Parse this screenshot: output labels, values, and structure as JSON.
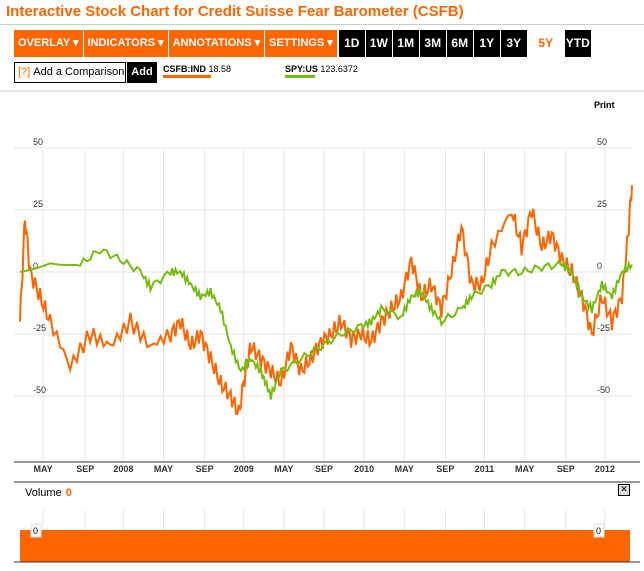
{
  "title": "Interactive Stock Chart for Credit Suisse Fear Barometer (CSFB)",
  "menus": [
    "OVERLAY ▾",
    "INDICATORS ▾",
    "ANNOTATIONS ▾",
    "SETTINGS ▾"
  ],
  "ranges": [
    "1D",
    "1W",
    "1M",
    "3M",
    "6M",
    "1Y",
    "3Y",
    "5Y",
    "YTD"
  ],
  "active_range": "5Y",
  "comparison": {
    "help": "[?]",
    "placeholder": "Add a Comparison",
    "add": "Add"
  },
  "legend": [
    {
      "symbol": "CSFB:IND",
      "value": "18.58",
      "color": "#ff6600"
    },
    {
      "symbol": "SPY:US",
      "value": "123.6372",
      "color": "#77bb11"
    }
  ],
  "print": "Print",
  "volume": {
    "label": "Volume",
    "value": "0",
    "axis_left": "0",
    "axis_right": "0",
    "close": "✕"
  },
  "chart_data": {
    "type": "line",
    "x_unit": "months since Mar 2007",
    "xlim": [
      0,
      61
    ],
    "ylim": [
      -70,
      70
    ],
    "yticks": [
      50,
      25,
      0,
      -25,
      -50
    ],
    "yticklabels": [
      "50",
      "25",
      "0",
      "-25",
      "-50"
    ],
    "xticks": [
      2.3,
      6.5,
      10.3,
      14.3,
      18.4,
      22.3,
      26.3,
      30.3,
      34.3,
      38.3,
      42.4,
      46.3,
      50.3,
      54.4,
      58.3
    ],
    "xticklabels": [
      "MAY",
      "SEP",
      "2008",
      "MAY",
      "SEP",
      "2009",
      "MAY",
      "SEP",
      "2010",
      "MAY",
      "SEP",
      "2011",
      "MAY",
      "SEP",
      "2012"
    ],
    "series": [
      {
        "name": "CSFB:IND",
        "color": "#ff6600",
        "x": [
          0,
          0.5,
          1,
          2,
          3,
          5,
          7,
          9,
          11,
          13,
          15,
          16,
          17,
          18,
          19,
          20,
          21,
          21.8,
          22.5,
          23,
          24,
          25,
          26,
          27,
          28,
          29,
          30,
          31,
          32,
          33,
          34,
          35,
          36,
          37,
          38,
          39,
          40,
          41,
          42,
          43,
          44,
          45,
          46,
          47,
          49,
          50,
          51,
          52,
          53,
          54,
          55,
          56,
          57,
          58,
          59,
          60,
          60.6,
          61
        ],
        "y": [
          -20,
          22,
          0,
          -10,
          -20,
          -38,
          -25,
          -30,
          -20,
          -30,
          -25,
          -20,
          -30,
          -25,
          -35,
          -45,
          -50,
          -57,
          -40,
          -30,
          -35,
          -40,
          -45,
          -30,
          -40,
          -35,
          -28,
          -25,
          -20,
          -27,
          -25,
          -28,
          -20,
          -15,
          -10,
          5,
          -10,
          -5,
          -15,
          0,
          18,
          -5,
          -5,
          10,
          25,
          10,
          25,
          10,
          15,
          5,
          0,
          -10,
          -25,
          -10,
          -20,
          -10,
          15,
          35
        ]
      },
      {
        "name": "SPY:US",
        "color": "#77bb11",
        "x": [
          0,
          3,
          6,
          8,
          10,
          12,
          13,
          15,
          16,
          17,
          18,
          19,
          20,
          21,
          22,
          23,
          24,
          24.5,
          25,
          26,
          28,
          30,
          32,
          34,
          35,
          36,
          38,
          39,
          40,
          41,
          42,
          44,
          45,
          47,
          48,
          50,
          52,
          54,
          55,
          56,
          57,
          58,
          59,
          60,
          61
        ],
        "y": [
          0,
          5,
          3,
          9,
          5,
          0,
          -6,
          0,
          0,
          -5,
          -10,
          -8,
          -15,
          -30,
          -40,
          -35,
          -40,
          -45,
          -50,
          -40,
          -35,
          -30,
          -25,
          -22,
          -20,
          -15,
          -18,
          -10,
          -8,
          -15,
          -20,
          -15,
          -10,
          -5,
          0,
          0,
          2,
          3,
          0,
          -10,
          -15,
          -5,
          -10,
          0,
          3
        ]
      }
    ]
  }
}
